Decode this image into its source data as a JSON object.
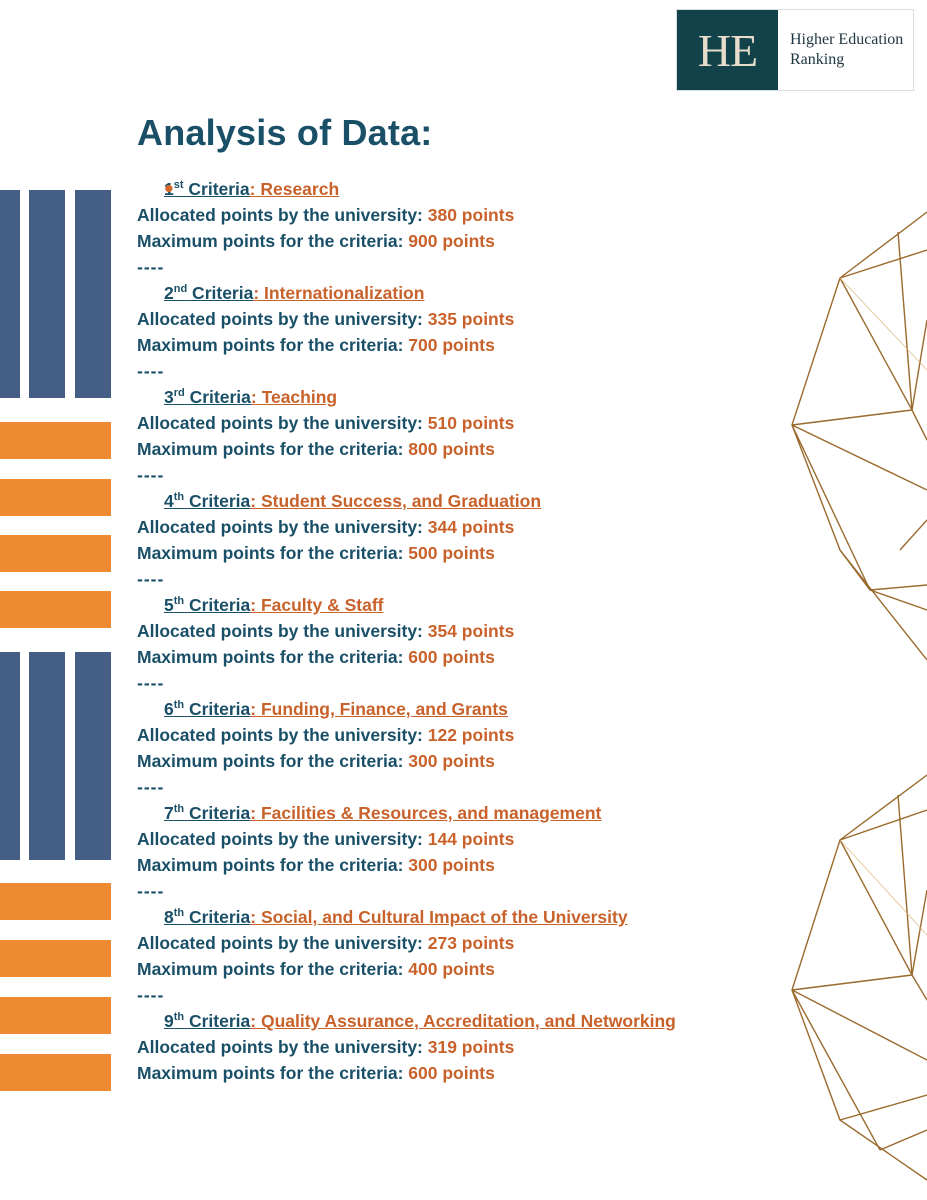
{
  "logo": {
    "mark": "HE",
    "line1": "Higher Education",
    "line2": "Ranking"
  },
  "title": "Analysis of Data:",
  "labels": {
    "allocated": "Allocated points by the university: ",
    "maximum": "Maximum points for the criteria: ",
    "separator": "----"
  },
  "criteria": [
    {
      "num": "1",
      "suffix": "st",
      "word": " Criteria",
      "name": ": Research",
      "allocated": "380 points",
      "maximum": "900 points"
    },
    {
      "num": "2",
      "suffix": "nd",
      "word": " Criteria",
      "name": ": Internationalization",
      "allocated": "335 points",
      "maximum": "700 points"
    },
    {
      "num": "3",
      "suffix": "rd",
      "word": " Criteria",
      "name": ": Teaching",
      "allocated": "510 points",
      "maximum": "800 points"
    },
    {
      "num": "4",
      "suffix": "th",
      "word": " Criteria",
      "name": ": Student Success, and Graduation",
      "allocated": "344 points",
      "maximum": "500 points"
    },
    {
      "num": "5",
      "suffix": "th",
      "word": " Criteria",
      "name": ": Faculty & Staff",
      "allocated": "354 points",
      "maximum": "600 points"
    },
    {
      "num": "6",
      "suffix": "th",
      "word": " Criteria",
      "name": ": Funding, Finance, and Grants",
      "allocated": "122 points",
      "maximum": "300 points"
    },
    {
      "num": "7",
      "suffix": "th",
      "word": " Criteria",
      "name": ": Facilities & Resources, and management",
      "allocated": "144 points",
      "maximum": "300 points"
    },
    {
      "num": "8",
      "suffix": "th",
      "word": " Criteria",
      "name": ": Social, and Cultural Impact of the University",
      "allocated": "273 points",
      "maximum": "400 points"
    },
    {
      "num": "9",
      "suffix": "th",
      "word": " Criteria",
      "name": ": Quality Assurance, Accreditation, and Networking",
      "allocated": "319 points",
      "maximum": "600 points"
    }
  ],
  "colors": {
    "primary": "#1a4f68",
    "accent": "#c9612a",
    "stripe_blue": "#455e85",
    "stripe_orange": "#ee8a31",
    "logo_bg": "#12434a"
  }
}
